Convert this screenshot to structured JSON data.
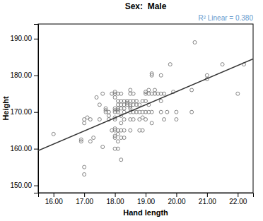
{
  "chart_data": {
    "type": "scatter",
    "title": "Sex:  Male",
    "xlabel": "Hand length",
    "ylabel": "Height",
    "annotations": [
      {
        "text": "R² Linear = 0.380",
        "color": "#6699cc"
      }
    ],
    "xlim": [
      15.5,
      22.5
    ],
    "ylim": [
      148,
      194
    ],
    "xticks": [
      {
        "value": 16.0,
        "label": "16.00"
      },
      {
        "value": 17.0,
        "label": "17.00"
      },
      {
        "value": 18.0,
        "label": "18.00"
      },
      {
        "value": 19.0,
        "label": "19.00"
      },
      {
        "value": 20.0,
        "label": "20.00"
      },
      {
        "value": 21.0,
        "label": "21.00"
      },
      {
        "value": 22.0,
        "label": "22.00"
      }
    ],
    "yticks": [
      {
        "value": 150.0,
        "label": "150.00"
      },
      {
        "value": 160.0,
        "label": "160.00"
      },
      {
        "value": 170.0,
        "label": "170.00"
      },
      {
        "value": 180.0,
        "label": "180.00"
      },
      {
        "value": 190.0,
        "label": "190.00"
      }
    ],
    "grid": false,
    "series": [
      {
        "type": "scatter",
        "marker": "open-circle",
        "color": "#777777",
        "x": [
          16.0,
          16.9,
          16.9,
          17.0,
          17.0,
          17.0,
          17.0,
          17.1,
          17.2,
          17.2,
          17.3,
          17.4,
          17.5,
          17.5,
          17.6,
          17.6,
          17.7,
          17.7,
          17.7,
          17.8,
          17.8,
          17.8,
          17.9,
          17.9,
          18.0,
          18.0,
          18.0,
          18.0,
          18.0,
          18.0,
          18.0,
          18.0,
          18.0,
          18.0,
          18.0,
          18.0,
          18.0,
          18.1,
          18.1,
          18.1,
          18.1,
          18.1,
          18.1,
          18.1,
          18.1,
          18.1,
          18.1,
          18.2,
          18.2,
          18.2,
          18.2,
          18.2,
          18.2,
          18.2,
          18.2,
          18.2,
          18.3,
          18.3,
          18.3,
          18.3,
          18.3,
          18.3,
          18.3,
          18.4,
          18.4,
          18.4,
          18.5,
          18.5,
          18.5,
          18.5,
          18.5,
          18.5,
          18.5,
          18.5,
          18.5,
          18.6,
          18.6,
          18.6,
          18.6,
          18.6,
          18.7,
          18.7,
          18.7,
          18.8,
          18.8,
          18.8,
          18.8,
          18.9,
          18.9,
          18.9,
          18.9,
          19.0,
          19.0,
          19.0,
          19.0,
          19.0,
          19.1,
          19.1,
          19.1,
          19.1,
          19.2,
          19.2,
          19.2,
          19.2,
          19.2,
          19.3,
          19.3,
          19.4,
          19.5,
          19.5,
          19.5,
          19.5,
          19.6,
          19.6,
          19.7,
          19.8,
          19.9,
          20.0,
          20.0,
          20.5,
          20.5,
          20.6,
          21.0,
          21.0,
          21.5,
          22.0,
          22.2
        ],
        "values": [
          164.0,
          162.0,
          162.5,
          155.0,
          153.0,
          167.0,
          168.0,
          168.5,
          168.0,
          162.0,
          163.0,
          174.0,
          168.0,
          172.0,
          160.5,
          175.0,
          170.0,
          170.5,
          171.0,
          168.0,
          169.0,
          170.0,
          165.0,
          175.0,
          160.0,
          163.0,
          163.5,
          165.0,
          165.5,
          168.0,
          168.5,
          170.0,
          170.5,
          171.0,
          174.0,
          175.0,
          175.5,
          160.0,
          162.0,
          164.0,
          165.0,
          170.0,
          170.5,
          171.0,
          172.0,
          173.0,
          175.0,
          157.0,
          163.0,
          165.0,
          167.0,
          169.0,
          171.0,
          172.0,
          173.0,
          175.0,
          163.0,
          165.0,
          168.0,
          170.0,
          171.0,
          172.0,
          173.0,
          172.0,
          172.5,
          173.0,
          165.0,
          168.0,
          170.0,
          171.0,
          171.5,
          172.0,
          173.0,
          175.0,
          176.0,
          168.0,
          170.0,
          172.0,
          173.0,
          175.0,
          170.0,
          172.0,
          173.0,
          165.0,
          168.0,
          170.0,
          172.0,
          165.0,
          168.5,
          170.0,
          173.0,
          168.0,
          170.0,
          173.0,
          175.0,
          175.5,
          170.0,
          172.0,
          175.0,
          176.0,
          167.0,
          170.0,
          175.0,
          180.0,
          180.5,
          175.0,
          176.0,
          175.0,
          170.0,
          173.0,
          175.0,
          180.0,
          168.0,
          175.0,
          170.0,
          183.0,
          175.5,
          168.0,
          170.0,
          170.0,
          176.0,
          189.0,
          179.0,
          180.0,
          183.0,
          175.0,
          183.0
        ]
      },
      {
        "type": "line",
        "line_style": "solid",
        "color": "#333333",
        "x": [
          15.5,
          22.5
        ],
        "values": [
          159.5,
          184.5
        ]
      }
    ]
  }
}
